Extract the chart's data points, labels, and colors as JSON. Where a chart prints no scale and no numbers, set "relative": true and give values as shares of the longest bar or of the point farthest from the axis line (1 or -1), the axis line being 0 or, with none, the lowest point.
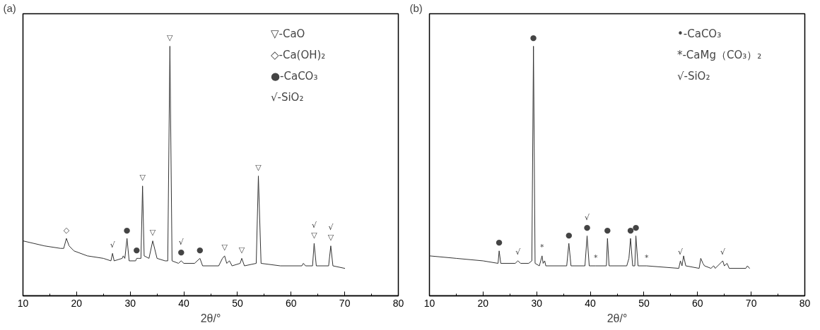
{
  "chart_data": [
    {
      "type": "line",
      "title": "(a)",
      "xlabel": "2θ/°",
      "relative": true,
      "xlim": [
        10,
        80
      ],
      "xticks": [
        10,
        20,
        30,
        40,
        50,
        60,
        70,
        80
      ],
      "series": [
        {
          "color": "#333333",
          "x": [
            10,
            14,
            17,
            17.6,
            18.1,
            18.6,
            19.5,
            22,
            25,
            26.4,
            26.7,
            27,
            28.5,
            28.7,
            29.0,
            29.4,
            29.8,
            31,
            31.2,
            31.6,
            32.0,
            32.3,
            32.6,
            33.5,
            34.2,
            35.0,
            36.5,
            37.0,
            37.4,
            37.8,
            39.0,
            39.5,
            40,
            42,
            43.0,
            43.5,
            46.5,
            47.2,
            47.6,
            48.0,
            48.5,
            49,
            50.5,
            50.8,
            51.3,
            53.5,
            53.9,
            54.4,
            58,
            62,
            62.3,
            62.7,
            64.0,
            64.3,
            64.7,
            67.0,
            67.4,
            67.8,
            70
          ],
          "values": [
            0.22,
            0.2,
            0.19,
            0.19,
            0.23,
            0.2,
            0.18,
            0.16,
            0.15,
            0.14,
            0.17,
            0.14,
            0.15,
            0.16,
            0.15,
            0.23,
            0.14,
            0.14,
            0.15,
            0.15,
            0.15,
            0.44,
            0.16,
            0.15,
            0.22,
            0.15,
            0.14,
            0.14,
            1,
            0.14,
            0.13,
            0.14,
            0.13,
            0.13,
            0.15,
            0.12,
            0.12,
            0.15,
            0.16,
            0.13,
            0.14,
            0.12,
            0.13,
            0.15,
            0.12,
            0.13,
            0.48,
            0.13,
            0.12,
            0.12,
            0.13,
            0.12,
            0.12,
            0.21,
            0.12,
            0.12,
            0.2,
            0.12,
            0.11
          ]
        }
      ],
      "annotations": [
        "▽-CaO",
        "◇-Ca(OH)₂",
        "●-CaCO₃",
        "√-SiO₂",
        {
          "text": "◇",
          "x": 18.1,
          "y": 0.23
        },
        {
          "text": "√",
          "x": 26.7,
          "y": 0.17
        },
        {
          "text": "●",
          "x": 29.4,
          "y": 0.23
        },
        {
          "text": "●",
          "x": 31.2,
          "y": 0.15
        },
        {
          "text": "▽",
          "x": 32.3,
          "y": 0.44
        },
        {
          "text": "▽",
          "x": 34.2,
          "y": 0.22
        },
        {
          "text": "▽",
          "x": 37.4,
          "y": 1
        },
        {
          "text": "●",
          "x": 39.5,
          "y": 0.14
        },
        {
          "text": "√",
          "x": 39.5,
          "y": 0.14
        },
        {
          "text": "●",
          "x": 43.0,
          "y": 0.15
        },
        {
          "text": "▽",
          "x": 47.6,
          "y": 0.16
        },
        {
          "text": "▽",
          "x": 50.8,
          "y": 0.15
        },
        {
          "text": "▽",
          "x": 53.9,
          "y": 0.48
        },
        {
          "text": "▽",
          "x": 64.3,
          "y": 0.21
        },
        {
          "text": "√",
          "x": 64.3,
          "y": 0.21
        },
        {
          "text": "▽",
          "x": 67.4,
          "y": 0.2
        },
        {
          "text": "√",
          "x": 67.4,
          "y": 0.2
        }
      ]
    },
    {
      "type": "line",
      "title": "(b)",
      "xlabel": "2θ/°",
      "relative": true,
      "xlim": [
        10,
        80
      ],
      "xticks": [
        10,
        20,
        30,
        40,
        50,
        60,
        70,
        80
      ],
      "series": [
        {
          "color": "#333333",
          "x": [
            10,
            15,
            20,
            22.8,
            23.0,
            23.3,
            26.0,
            26.5,
            27,
            28.5,
            29.1,
            29.4,
            29.7,
            30.5,
            31.0,
            31.2,
            31.5,
            31.7,
            35.6,
            36.0,
            36.4,
            39.0,
            39.4,
            39.8,
            41.0,
            43.0,
            43.2,
            43.5,
            46.8,
            47.2,
            47.5,
            47.9,
            48.3,
            48.5,
            48.9,
            50.5,
            56.5,
            56.8,
            57.1,
            57.4,
            57.8,
            60.3,
            60.6,
            61.0,
            61.3,
            62.5,
            63.0,
            63.3,
            64.7,
            65.0,
            65.5,
            65.9,
            69.0,
            69.3,
            69.7
          ],
          "values": [
            0.16,
            0.15,
            0.14,
            0.13,
            0.18,
            0.13,
            0.13,
            0.14,
            0.13,
            0.13,
            0.14,
            1,
            0.13,
            0.12,
            0.16,
            0.13,
            0.14,
            0.12,
            0.12,
            0.21,
            0.12,
            0.12,
            0.24,
            0.12,
            0.12,
            0.12,
            0.23,
            0.12,
            0.12,
            0.15,
            0.23,
            0.12,
            0.12,
            0.24,
            0.12,
            0.12,
            0.11,
            0.14,
            0.12,
            0.16,
            0.12,
            0.11,
            0.15,
            0.13,
            0.12,
            0.11,
            0.12,
            0.11,
            0.14,
            0.12,
            0.13,
            0.11,
            0.11,
            0.12,
            0.11
          ]
        }
      ],
      "annotations": [
        "•-CaCO₃",
        "*-CaMg（CO₃）₂",
        "√-SiO₂",
        {
          "text": "●",
          "x": 23.0,
          "y": 0.18
        },
        {
          "text": "√",
          "x": 26.5,
          "y": 0.14
        },
        {
          "text": "●",
          "x": 29.4,
          "y": 1
        },
        {
          "text": "*",
          "x": 31.0,
          "y": 0.16
        },
        {
          "text": "●",
          "x": 36.0,
          "y": 0.21
        },
        {
          "text": "●",
          "x": 39.4,
          "y": 0.24
        },
        {
          "text": "√",
          "x": 39.4,
          "y": 0.24
        },
        {
          "text": "*",
          "x": 41.0,
          "y": 0.12
        },
        {
          "text": "●",
          "x": 43.2,
          "y": 0.23
        },
        {
          "text": "●",
          "x": 47.5,
          "y": 0.23
        },
        {
          "text": "●",
          "x": 48.5,
          "y": 0.24
        },
        {
          "text": "*",
          "x": 50.5,
          "y": 0.12
        },
        {
          "text": "√",
          "x": 56.8,
          "y": 0.14
        },
        {
          "text": "√",
          "x": 64.7,
          "y": 0.14
        }
      ]
    }
  ]
}
